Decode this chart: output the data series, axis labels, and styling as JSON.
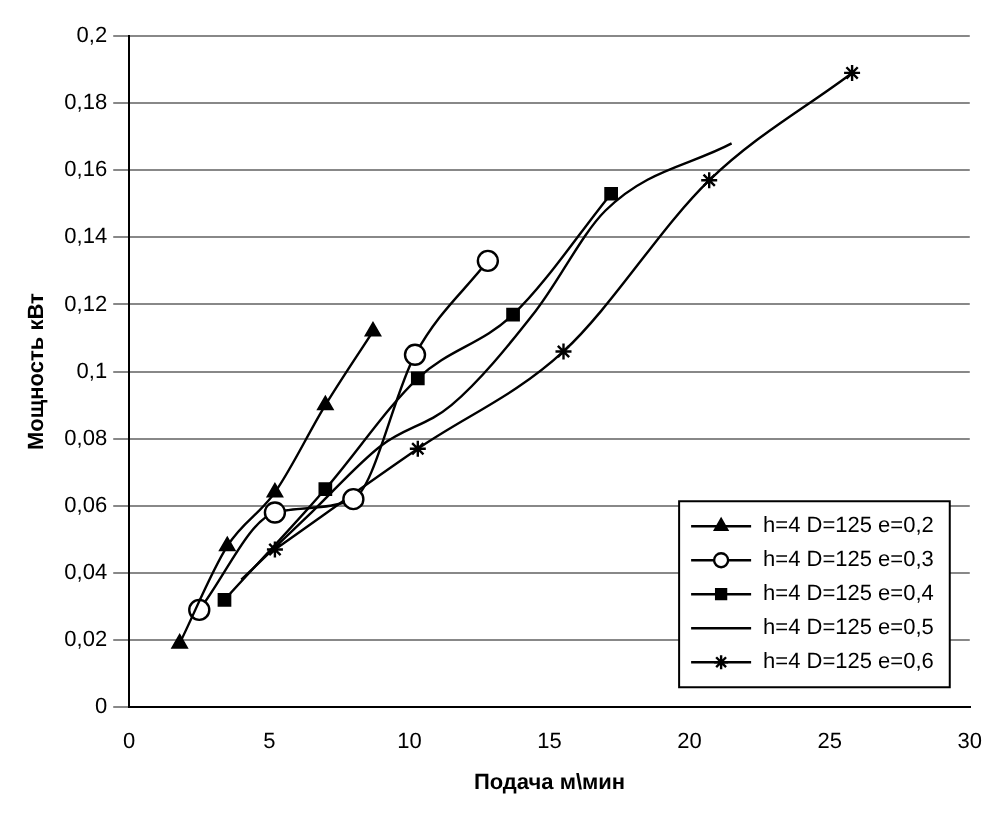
{
  "chart_data": {
    "type": "line",
    "xlabel": "Подача м\\мин",
    "ylabel": "Мощность кВт",
    "xlim": [
      0,
      30
    ],
    "xticks": [
      0,
      5,
      10,
      15,
      20,
      25,
      30
    ],
    "ylim": [
      0,
      0.2
    ],
    "yticks": [
      0,
      {
        "value": 0.02,
        "label": "0,02"
      },
      {
        "value": 0.04,
        "label": "0,04"
      },
      {
        "value": 0.06,
        "label": "0,06"
      },
      {
        "value": 0.08,
        "label": "0,08"
      },
      {
        "value": 0.1,
        "label": "0,1"
      },
      {
        "value": 0.12,
        "label": "0,12"
      },
      {
        "value": 0.14,
        "label": "0,14"
      },
      {
        "value": 0.16,
        "label": "0,16"
      },
      {
        "value": 0.18,
        "label": "0,18"
      },
      {
        "value": 0.2,
        "label": "0,2"
      }
    ],
    "grid": "y",
    "legend": "bottom right",
    "series": [
      {
        "name": "h=4 D=125 e=0,2",
        "color": "#000000",
        "marker": "triangle",
        "x": [
          1.8,
          3.5,
          5.2,
          7.0,
          8.7
        ],
        "values": [
          0.019,
          0.048,
          0.064,
          0.09,
          0.112
        ]
      },
      {
        "name": "h=4 D=125 e=0,3",
        "color": "#000000",
        "marker": "circle",
        "x": [
          2.5,
          5.2,
          8.0,
          10.2,
          12.8
        ],
        "values": [
          0.029,
          0.058,
          0.062,
          0.105,
          0.133
        ]
      },
      {
        "name": "h=4 D=125 e=0,4",
        "color": "#000000",
        "marker": "square",
        "x": [
          3.4,
          7.0,
          10.3,
          13.7,
          17.2
        ],
        "values": [
          0.032,
          0.065,
          0.098,
          0.117,
          0.153
        ]
      },
      {
        "name": "h=4 D=125 e=0,5",
        "color": "#000000",
        "marker": "none",
        "x": [
          4.0,
          6.5,
          9.0,
          11.5,
          14.5,
          17.0,
          21.5
        ],
        "values": [
          0.038,
          0.058,
          0.078,
          0.09,
          0.118,
          0.148,
          0.168
        ]
      },
      {
        "name": "h=4 D=125 e=0,6",
        "color": "#000000",
        "marker": "cross",
        "x": [
          5.2,
          10.3,
          15.5,
          20.7,
          25.8
        ],
        "values": [
          0.047,
          0.077,
          0.106,
          0.157,
          0.189
        ]
      }
    ]
  }
}
